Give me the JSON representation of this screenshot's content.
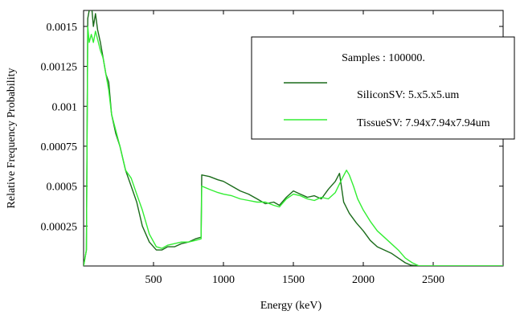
{
  "chart_data": {
    "type": "line",
    "title": "",
    "xlabel": "Energy (keV)",
    "ylabel": "Relative Frequency Probability",
    "xlim": [
      0,
      3000
    ],
    "ylim": [
      0,
      0.0016
    ],
    "grid": false,
    "legend_position": "top-right",
    "x_ticks": [
      500,
      1000,
      1500,
      2000,
      2500
    ],
    "x_tick_labels": [
      "500",
      "1000",
      "1500",
      "2000",
      "2500"
    ],
    "y_ticks": [
      0.00025,
      0.0005,
      0.00075,
      0.001,
      0.00125,
      0.0015
    ],
    "y_tick_labels": [
      "0.00025",
      "0.0005",
      "0.00075",
      "0.001",
      "0.00125",
      "0.0015"
    ],
    "legend": {
      "header": "Samples : 100000.",
      "entries": [
        "SiliconSV: 5.x5.x5.um",
        "TissueSV: 7.94x7.94x7.94um"
      ]
    },
    "series": [
      {
        "name": "SiliconSV: 5.x5.x5.um",
        "color": "#1a6b1a",
        "x": [
          0,
          20,
          30,
          40,
          55,
          70,
          85,
          100,
          120,
          140,
          160,
          180,
          200,
          230,
          260,
          300,
          340,
          380,
          420,
          470,
          520,
          560,
          600,
          650,
          700,
          750,
          800,
          840,
          845,
          900,
          960,
          1000,
          1060,
          1120,
          1180,
          1240,
          1300,
          1360,
          1400,
          1450,
          1500,
          1550,
          1600,
          1650,
          1700,
          1750,
          1800,
          1830,
          1860,
          1900,
          1950,
          2000,
          2050,
          2100,
          2150,
          2200,
          2250,
          2300,
          2340,
          2400,
          3000
        ],
        "y": [
          0,
          0.0001,
          0.00155,
          0.0016,
          0.00165,
          0.0015,
          0.00158,
          0.00148,
          0.0014,
          0.0013,
          0.0012,
          0.00115,
          0.00095,
          0.00083,
          0.00075,
          0.0006,
          0.0005,
          0.0004,
          0.00025,
          0.00015,
          0.0001,
          0.0001,
          0.00012,
          0.00012,
          0.00014,
          0.00015,
          0.00017,
          0.00018,
          0.00057,
          0.00056,
          0.00054,
          0.00053,
          0.0005,
          0.00047,
          0.00045,
          0.00042,
          0.00039,
          0.0004,
          0.00038,
          0.00043,
          0.00047,
          0.00045,
          0.00043,
          0.00044,
          0.00042,
          0.00048,
          0.00053,
          0.00058,
          0.0004,
          0.00033,
          0.00027,
          0.00022,
          0.00016,
          0.00012,
          0.0001,
          8e-05,
          5e-05,
          2e-05,
          5e-06,
          0,
          0
        ]
      },
      {
        "name": "TissueSV: 7.94x7.94x7.94um",
        "color": "#33ee33",
        "x": [
          0,
          20,
          30,
          40,
          55,
          70,
          85,
          100,
          120,
          140,
          160,
          180,
          200,
          230,
          260,
          300,
          340,
          380,
          420,
          470,
          520,
          560,
          600,
          650,
          700,
          750,
          800,
          840,
          845,
          900,
          960,
          1000,
          1060,
          1120,
          1180,
          1240,
          1300,
          1360,
          1400,
          1450,
          1500,
          1550,
          1600,
          1650,
          1700,
          1750,
          1800,
          1850,
          1880,
          1900,
          1930,
          1960,
          2000,
          2050,
          2100,
          2150,
          2200,
          2250,
          2300,
          2350,
          2400,
          3000
        ],
        "y": [
          0,
          0.0001,
          0.0015,
          0.0014,
          0.00145,
          0.0014,
          0.00147,
          0.00142,
          0.00135,
          0.0013,
          0.0012,
          0.0011,
          0.00095,
          0.00085,
          0.00075,
          0.0006,
          0.00055,
          0.00045,
          0.00035,
          0.0002,
          0.00012,
          0.00011,
          0.00013,
          0.00014,
          0.00015,
          0.00015,
          0.00016,
          0.00017,
          0.0005,
          0.00048,
          0.00046,
          0.00045,
          0.00044,
          0.00042,
          0.00041,
          0.0004,
          0.0004,
          0.00038,
          0.00037,
          0.00042,
          0.00045,
          0.00044,
          0.00042,
          0.00041,
          0.00043,
          0.00042,
          0.00046,
          0.00055,
          0.0006,
          0.00057,
          0.0005,
          0.00042,
          0.00035,
          0.00028,
          0.00022,
          0.00018,
          0.00014,
          0.0001,
          5e-05,
          2e-05,
          0,
          0
        ]
      }
    ]
  }
}
